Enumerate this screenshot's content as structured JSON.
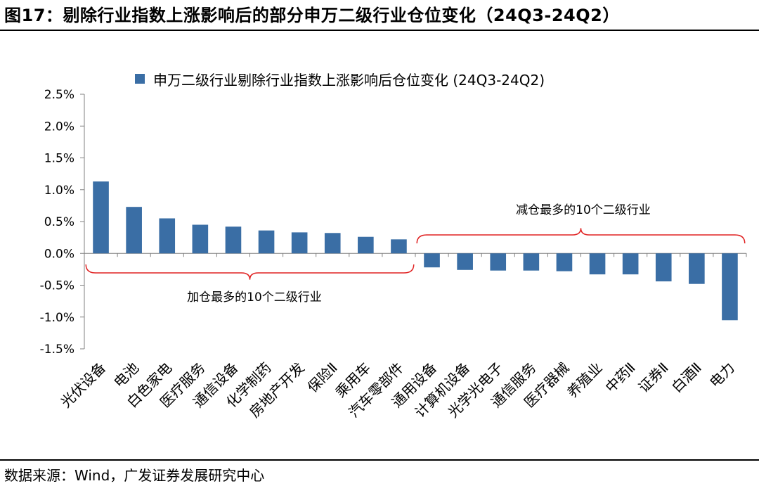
{
  "figure": {
    "title": "图17：剔除行业指数上涨影响后的部分申万二级行业仓位变化（24Q3-24Q2）",
    "source": "数据来源：Wind，广发证券发展研究中心"
  },
  "chart_data": {
    "type": "bar",
    "categories": [
      "光伏设备",
      "电池",
      "白色家电",
      "医疗服务",
      "通信设备",
      "化学制药",
      "房地产开发",
      "保险Ⅱ",
      "乘用车",
      "汽车零部件",
      "通用设备",
      "计算机设备",
      "光学光电子",
      "通信服务",
      "医疗器械",
      "养殖业",
      "中药Ⅱ",
      "证券Ⅱ",
      "白酒Ⅱ",
      "电力"
    ],
    "series": [
      {
        "name": "申万二级行业剔除行业指数上涨影响后仓位变化 (24Q3-24Q2)",
        "values": [
          1.13,
          0.73,
          0.55,
          0.45,
          0.42,
          0.36,
          0.33,
          0.32,
          0.26,
          0.22,
          -0.22,
          -0.26,
          -0.27,
          -0.27,
          -0.28,
          -0.33,
          -0.33,
          -0.44,
          -0.48,
          -1.05
        ],
        "color": "#3a6ea5"
      }
    ],
    "ylim": [
      -1.5,
      2.5
    ],
    "yticks": [
      "2.5%",
      "2.0%",
      "1.5%",
      "1.0%",
      "0.5%",
      "0.0%",
      "-0.5%",
      "-1.0%",
      "-1.5%"
    ],
    "grid": false,
    "legend_position": "top",
    "annotations": [
      {
        "label": "加仓最多的10个二级行业",
        "group": "top10-increase"
      },
      {
        "label": "减仓最多的10个二级行业",
        "group": "top10-decrease"
      }
    ],
    "bracket_color": "#e02020"
  }
}
